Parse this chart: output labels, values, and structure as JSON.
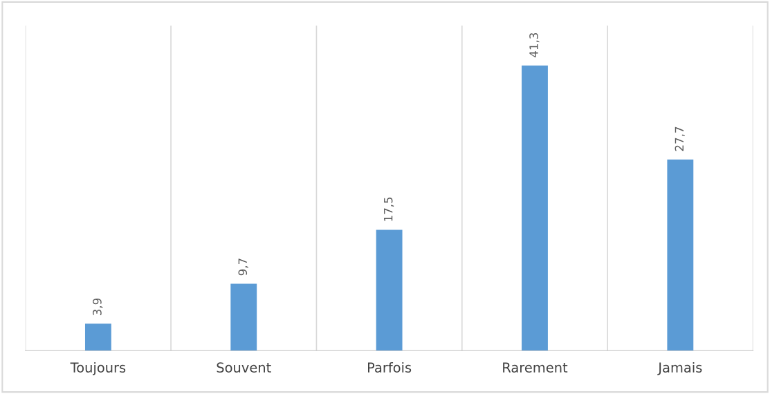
{
  "chart_data": {
    "type": "bar",
    "categories": [
      "Toujours",
      "Souvent",
      "Parfois",
      "Rarement",
      "Jamais"
    ],
    "values": [
      3.9,
      9.7,
      17.5,
      41.3,
      27.7
    ],
    "color": "#5b9bd5",
    "value_labels": [
      "3,9",
      "9,7",
      "17,5",
      "41,3",
      "27,7"
    ],
    "grid": "x"
  }
}
